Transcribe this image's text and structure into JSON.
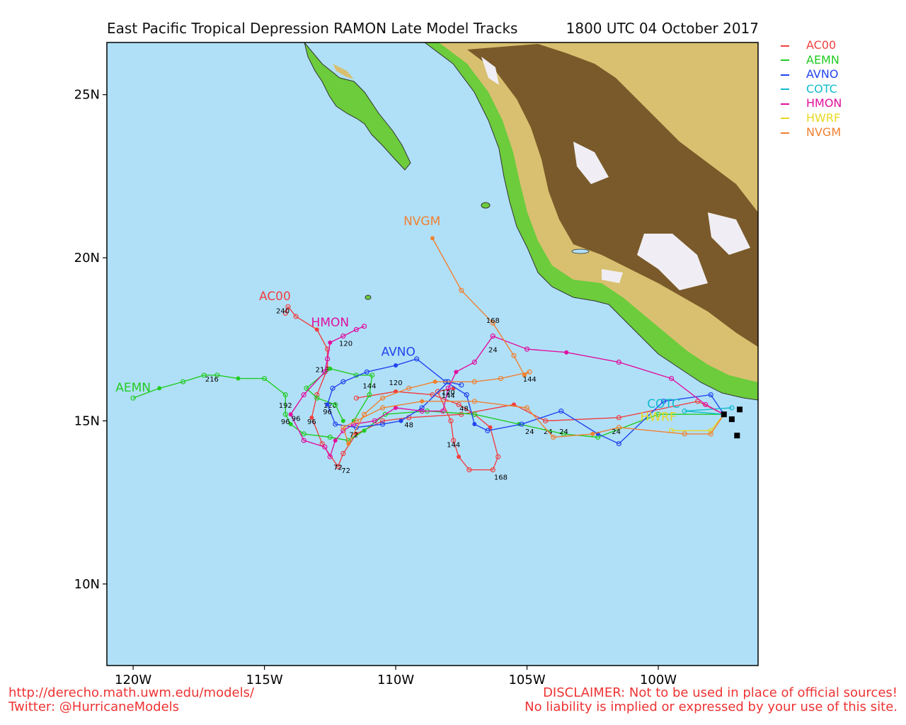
{
  "header": {
    "title_left": "East Pacific Tropical Depression RAMON Late Model Tracks",
    "title_right": "1800 UTC 04 October 2017"
  },
  "colors": {
    "ocean": "#b0e0f8",
    "land_low": "#6ccc3c",
    "land_mid": "#d8c070",
    "land_high": "#7a5a2a",
    "peaks": "#f0eef4",
    "footer": "#e33333"
  },
  "axes": {
    "lon_ticks": [
      -120,
      -115,
      -110,
      -105,
      -100
    ],
    "lon_labels": [
      "120W",
      "115W",
      "110W",
      "105W",
      "100W"
    ],
    "lat_ticks": [
      10,
      15,
      20,
      25
    ],
    "lat_labels": [
      "10N",
      "15N",
      "20N",
      "25N"
    ],
    "lon_range": [
      -121,
      -96.2
    ],
    "lat_range": [
      7.5,
      26.6
    ]
  },
  "legend": [
    {
      "name": "AC00",
      "color": "#f04040"
    },
    {
      "name": "AEMN",
      "color": "#22cc22"
    },
    {
      "name": "AVNO",
      "color": "#2244ee"
    },
    {
      "name": "COTC",
      "color": "#11bbcc"
    },
    {
      "name": "HMON",
      "color": "#e010a0"
    },
    {
      "name": "HWRF",
      "color": "#e8d820"
    },
    {
      "name": "NVGM",
      "color": "#f08030"
    }
  ],
  "chart_data": {
    "type": "scatter",
    "storm": "RAMON",
    "start_position": {
      "lon": -97.5,
      "lat": 15.2
    },
    "tracks": [
      {
        "model": "AC00",
        "color": "#f04040",
        "label": "AC00",
        "label_at": {
          "lon": -114.6,
          "lat": 18.7
        },
        "points": [
          [
            -97.5,
            15.2
          ],
          [
            -98.5,
            15.6
          ],
          [
            -101.5,
            15.1
          ],
          [
            -104.3,
            15.0
          ],
          [
            -105.5,
            15.5
          ],
          [
            -107.5,
            15.2
          ],
          [
            -109.5,
            15.1
          ],
          [
            -110.5,
            15.0
          ],
          [
            -111.5,
            14.6
          ],
          [
            -112.0,
            14.0
          ],
          [
            -112.2,
            13.6
          ],
          [
            -112.8,
            14.3
          ],
          [
            -113.2,
            15.1
          ],
          [
            -113.0,
            15.8
          ],
          [
            -112.6,
            16.6
          ],
          [
            -112.6,
            17.2
          ],
          [
            -113.0,
            17.8
          ],
          [
            -113.8,
            18.2
          ],
          [
            -114.1,
            18.5
          ],
          [
            -114.2,
            18.3
          ]
        ],
        "hour_labels": [
          {
            "text": "24",
            "lon": -104.2,
            "lat": 14.6
          },
          {
            "text": "48",
            "lon": -109.5,
            "lat": 14.8
          },
          {
            "text": "72",
            "lon": -111.9,
            "lat": 13.4
          },
          {
            "text": "96",
            "lon": -113.2,
            "lat": 14.9
          },
          {
            "text": "120",
            "lon": -112.5,
            "lat": 15.4
          },
          {
            "text": "216",
            "lon": -112.8,
            "lat": 16.5
          },
          {
            "text": "240",
            "lon": -114.3,
            "lat": 18.3
          }
        ]
      },
      {
        "model": "AC00",
        "color": "#f04040",
        "label": "",
        "points": [
          [
            -107.8,
            16.0
          ],
          [
            -108.4,
            15.9
          ],
          [
            -107.9,
            15.0
          ],
          [
            -107.8,
            14.4
          ],
          [
            -107.6,
            13.9
          ],
          [
            -107.2,
            13.5
          ],
          [
            -106.3,
            13.5
          ],
          [
            -106.1,
            13.9
          ],
          [
            -106.4,
            14.8
          ],
          [
            -107.0,
            15.2
          ],
          [
            -107.6,
            15.5
          ],
          [
            -108.6,
            15.8
          ],
          [
            -110.0,
            15.9
          ],
          [
            -111.5,
            15.7
          ]
        ],
        "hour_labels": [
          {
            "text": "144",
            "lon": -107.8,
            "lat": 14.2
          },
          {
            "text": "168",
            "lon": -106.0,
            "lat": 13.2
          },
          {
            "text": "120",
            "lon": -110.0,
            "lat": 16.1
          }
        ]
      },
      {
        "model": "AEMN",
        "color": "#22cc22",
        "label": "AEMN",
        "label_at": {
          "lon": -120.0,
          "lat": 15.9
        },
        "points": [
          [
            -97.5,
            15.2
          ],
          [
            -100.0,
            15.2
          ],
          [
            -102.3,
            14.5
          ],
          [
            -103.6,
            14.6
          ],
          [
            -105.3,
            14.9
          ],
          [
            -107.0,
            15.2
          ],
          [
            -108.8,
            15.3
          ],
          [
            -110.4,
            15.2
          ],
          [
            -111.2,
            14.7
          ],
          [
            -111.8,
            14.4
          ],
          [
            -112.5,
            14.5
          ],
          [
            -113.5,
            14.6
          ],
          [
            -114.0,
            14.9
          ],
          [
            -114.2,
            15.2
          ],
          [
            -114.2,
            15.8
          ],
          [
            -115.0,
            16.3
          ],
          [
            -116.0,
            16.3
          ],
          [
            -116.8,
            16.4
          ],
          [
            -117.3,
            16.4
          ],
          [
            -118.1,
            16.2
          ],
          [
            -119.0,
            16.0
          ],
          [
            -120.0,
            15.7
          ]
        ],
        "hour_labels": [
          {
            "text": "24",
            "lon": -104.9,
            "lat": 14.6
          },
          {
            "text": "96",
            "lon": -114.2,
            "lat": 14.9
          },
          {
            "text": "192",
            "lon": -114.2,
            "lat": 15.4
          },
          {
            "text": "216",
            "lon": -117.0,
            "lat": 16.2
          }
        ]
      },
      {
        "model": "AEMN",
        "color": "#22cc22",
        "label": "",
        "points": [
          [
            -112.0,
            15.0
          ],
          [
            -112.3,
            15.5
          ],
          [
            -113.0,
            15.7
          ],
          [
            -113.4,
            16.0
          ],
          [
            -112.5,
            16.6
          ],
          [
            -111.5,
            16.4
          ],
          [
            -110.9,
            16.4
          ],
          [
            -111.0,
            15.8
          ],
          [
            -111.6,
            15.0
          ]
        ],
        "hour_labels": [
          {
            "text": "144",
            "lon": -111.0,
            "lat": 16.0
          }
        ]
      },
      {
        "model": "AVNO",
        "color": "#2244ee",
        "label": "AVNO",
        "label_at": {
          "lon": -109.9,
          "lat": 17.0
        },
        "points": [
          [
            -97.5,
            15.2
          ],
          [
            -98.0,
            15.8
          ],
          [
            -99.8,
            15.6
          ],
          [
            -101.5,
            14.3
          ],
          [
            -102.3,
            14.6
          ],
          [
            -103.7,
            15.3
          ],
          [
            -105.2,
            14.9
          ],
          [
            -106.5,
            14.7
          ],
          [
            -107.0,
            14.9
          ],
          [
            -107.3,
            15.8
          ],
          [
            -108.1,
            16.2
          ],
          [
            -109.2,
            16.9
          ],
          [
            -110.0,
            16.7
          ],
          [
            -111.1,
            16.5
          ],
          [
            -112.0,
            16.2
          ],
          [
            -112.4,
            16.0
          ],
          [
            -112.6,
            15.5
          ],
          [
            -112.3,
            14.9
          ],
          [
            -111.5,
            14.8
          ],
          [
            -110.5,
            14.9
          ],
          [
            -109.8,
            15.0
          ],
          [
            -109.0,
            15.4
          ],
          [
            -108.0,
            16.2
          ],
          [
            -107.5,
            16.1
          ]
        ],
        "hour_labels": [
          {
            "text": "24",
            "lon": -103.6,
            "lat": 14.6
          },
          {
            "text": "96",
            "lon": -112.6,
            "lat": 15.2
          },
          {
            "text": "144",
            "lon": -108.0,
            "lat": 15.7
          }
        ]
      },
      {
        "model": "COTC",
        "color": "#11bbcc",
        "label": "COTC",
        "label_at": {
          "lon": -99.8,
          "lat": 15.4
        },
        "points": [
          [
            -97.5,
            15.2
          ],
          [
            -99.0,
            15.3
          ],
          [
            -97.2,
            15.4
          ]
        ],
        "hour_labels": []
      },
      {
        "model": "HMON",
        "color": "#e010a0",
        "label": "HMON",
        "label_at": {
          "lon": -112.5,
          "lat": 17.9
        },
        "points": [
          [
            -97.5,
            15.2
          ],
          [
            -98.2,
            15.5
          ],
          [
            -99.5,
            16.3
          ],
          [
            -101.5,
            16.8
          ],
          [
            -103.5,
            17.1
          ],
          [
            -105.0,
            17.2
          ],
          [
            -106.3,
            17.6
          ],
          [
            -107.0,
            16.8
          ],
          [
            -107.7,
            16.5
          ],
          [
            -108.0,
            16.0
          ],
          [
            -108.2,
            15.3
          ],
          [
            -109.0,
            15.3
          ],
          [
            -110.0,
            15.4
          ],
          [
            -110.8,
            15.0
          ],
          [
            -111.6,
            14.9
          ],
          [
            -112.0,
            14.7
          ],
          [
            -112.3,
            14.4
          ],
          [
            -112.5,
            13.9
          ],
          [
            -112.7,
            14.2
          ],
          [
            -113.5,
            14.4
          ],
          [
            -114.0,
            15.2
          ],
          [
            -113.5,
            15.8
          ],
          [
            -112.7,
            16.5
          ],
          [
            -112.6,
            16.9
          ],
          [
            -112.5,
            17.4
          ],
          [
            -112.0,
            17.6
          ],
          [
            -111.5,
            17.8
          ],
          [
            -111.2,
            17.9
          ]
        ],
        "hour_labels": [
          {
            "text": "24",
            "lon": -106.3,
            "lat": 17.1
          },
          {
            "text": "48",
            "lon": -107.4,
            "lat": 15.3
          },
          {
            "text": "72",
            "lon": -112.2,
            "lat": 13.5
          },
          {
            "text": "96",
            "lon": -113.8,
            "lat": 15.0
          },
          {
            "text": "120",
            "lon": -111.9,
            "lat": 17.3
          }
        ]
      },
      {
        "model": "HWRF",
        "color": "#e8d820",
        "label": "HWRF",
        "label_at": {
          "lon": -100.0,
          "lat": 15.0
        },
        "points": [
          [
            -97.5,
            15.2
          ],
          [
            -98.0,
            14.7
          ],
          [
            -99.5,
            14.7
          ]
        ],
        "hour_labels": []
      },
      {
        "model": "NVGM",
        "color": "#f08030",
        "label": "NVGM",
        "label_at": {
          "lon": -109.0,
          "lat": 21.0
        },
        "points": [
          [
            -97.5,
            15.2
          ],
          [
            -98.0,
            14.6
          ],
          [
            -99.0,
            14.6
          ],
          [
            -101.5,
            14.8
          ],
          [
            -102.5,
            14.6
          ],
          [
            -104.0,
            14.5
          ],
          [
            -105.0,
            15.4
          ],
          [
            -107.0,
            15.6
          ],
          [
            -109.0,
            15.6
          ],
          [
            -110.5,
            15.4
          ],
          [
            -111.5,
            15.0
          ],
          [
            -112.0,
            14.8
          ],
          [
            -111.8,
            14.3
          ],
          [
            -111.2,
            15.2
          ],
          [
            -110.5,
            15.7
          ],
          [
            -109.5,
            16.0
          ],
          [
            -108.5,
            16.2
          ],
          [
            -107.0,
            16.2
          ],
          [
            -106.0,
            16.3
          ],
          [
            -104.9,
            16.5
          ],
          [
            -105.1,
            16.4
          ],
          [
            -105.5,
            17.0
          ],
          [
            -106.3,
            18.0
          ],
          [
            -107.5,
            19.0
          ],
          [
            -108.6,
            20.6
          ]
        ],
        "hour_labels": [
          {
            "text": "24",
            "lon": -101.6,
            "lat": 14.6
          },
          {
            "text": "72",
            "lon": -111.6,
            "lat": 14.5
          },
          {
            "text": "120",
            "lon": -108.0,
            "lat": 15.8
          },
          {
            "text": "144",
            "lon": -104.9,
            "lat": 16.2
          },
          {
            "text": "168",
            "lon": -106.3,
            "lat": 18.0
          }
        ]
      }
    ]
  },
  "footer": {
    "url": "http://derecho.math.uwm.edu/models/",
    "twitter": "Twitter: @HurricaneModels",
    "disclaimer_1": "DISCLAIMER: Not to be used in place of official sources!",
    "disclaimer_2": "No liability is implied or expressed by your use of this site."
  }
}
